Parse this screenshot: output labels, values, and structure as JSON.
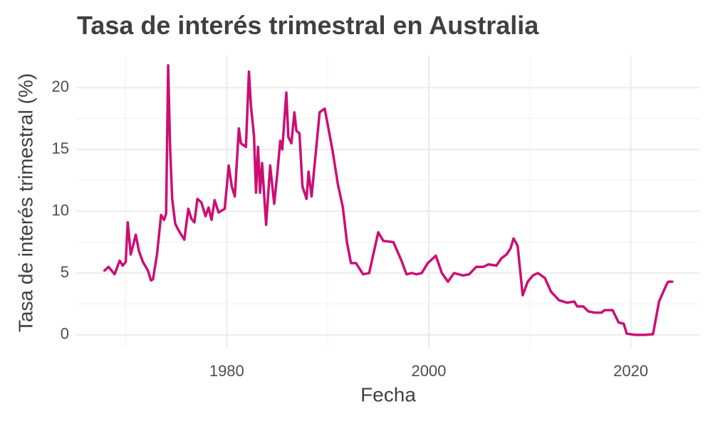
{
  "chart_data": {
    "type": "line",
    "title": "Tasa de interés trimestral en Australia",
    "x_label": "Fecha",
    "y_label": "Tasa de interés trimestral (%)",
    "color": "#cc0e74",
    "grid": true,
    "x": [
      1967.9,
      1968.3,
      1968.9,
      1969.4,
      1969.7,
      1970.0,
      1970.2,
      1970.5,
      1971.0,
      1971.3,
      1971.7,
      1972.2,
      1972.5,
      1972.7,
      1973.1,
      1973.5,
      1973.8,
      1974.0,
      1974.2,
      1974.4,
      1974.6,
      1974.9,
      1975.2,
      1975.8,
      1976.2,
      1976.5,
      1976.8,
      1977.1,
      1977.5,
      1977.9,
      1978.2,
      1978.5,
      1978.8,
      1979.2,
      1979.8,
      1980.2,
      1980.5,
      1980.8,
      1981.2,
      1981.4,
      1981.9,
      1982.2,
      1982.4,
      1982.7,
      1982.9,
      1983.1,
      1983.3,
      1983.5,
      1983.9,
      1984.2,
      1984.3,
      1984.7,
      1985.0,
      1985.3,
      1985.5,
      1985.9,
      1986.1,
      1986.4,
      1986.7,
      1986.9,
      1987.2,
      1987.5,
      1987.9,
      1988.1,
      1988.4,
      1989.2,
      1989.7,
      1990.0,
      1990.5,
      1991.0,
      1991.5,
      1991.9,
      1992.3,
      1992.8,
      1993.5,
      1994.1,
      1995.0,
      1995.5,
      1996.5,
      1997.3,
      1997.8,
      1998.3,
      1998.8,
      1999.3,
      1999.9,
      2000.7,
      2001.3,
      2001.9,
      2002.5,
      2003.4,
      2004.0,
      2004.7,
      2005.4,
      2005.9,
      2006.7,
      2007.2,
      2007.7,
      2008.1,
      2008.4,
      2008.8,
      2009.3,
      2009.8,
      2010.3,
      2010.8,
      2011.5,
      2012.1,
      2012.9,
      2013.7,
      2014.4,
      2014.7,
      2015.3,
      2015.8,
      2016.4,
      2017.1,
      2017.4,
      2018.2,
      2018.8,
      2019.3,
      2019.6,
      2020.4,
      2021.4,
      2022.2,
      2022.8,
      2023.5,
      2023.7,
      2024.1
    ],
    "values": [
      5.2,
      5.5,
      4.9,
      6.0,
      5.6,
      5.9,
      9.1,
      6.5,
      8.1,
      6.8,
      5.9,
      5.2,
      4.4,
      4.5,
      6.5,
      9.7,
      9.3,
      9.8,
      21.8,
      15.0,
      11.0,
      9.0,
      8.5,
      7.7,
      10.2,
      9.4,
      9.1,
      11.0,
      10.7,
      9.6,
      10.3,
      9.3,
      10.9,
      9.9,
      10.2,
      13.7,
      12.0,
      11.2,
      16.7,
      15.5,
      15.2,
      21.3,
      18.5,
      16.1,
      11.5,
      15.2,
      11.5,
      13.9,
      8.9,
      12.5,
      13.7,
      10.6,
      13.0,
      15.7,
      15.0,
      19.6,
      16.0,
      15.5,
      18.0,
      16.5,
      16.3,
      12.0,
      11.0,
      13.2,
      11.2,
      18.0,
      18.3,
      17.0,
      14.8,
      12.2,
      10.3,
      7.5,
      5.8,
      5.8,
      4.9,
      5.0,
      8.3,
      7.6,
      7.5,
      6.0,
      4.9,
      5.0,
      4.9,
      5.0,
      5.8,
      6.4,
      5.0,
      4.3,
      5.0,
      4.8,
      4.9,
      5.5,
      5.5,
      5.7,
      5.6,
      6.2,
      6.5,
      7.0,
      7.8,
      7.2,
      3.2,
      4.3,
      4.8,
      5.0,
      4.6,
      3.5,
      2.8,
      2.6,
      2.7,
      2.3,
      2.3,
      1.9,
      1.8,
      1.8,
      2.0,
      2.0,
      1.0,
      0.9,
      0.1,
      0.0,
      0.0,
      0.05,
      2.7,
      4.0,
      4.3,
      4.3
    ],
    "xlim": [
      1965.1,
      2026.8
    ],
    "ylim": [
      -1.1,
      22.6
    ],
    "xticks": [
      1980,
      2000,
      2020
    ],
    "yticks": [
      0,
      5,
      10,
      15,
      20
    ],
    "x_minor_grid": [
      1970,
      1990,
      2010
    ],
    "y_minor_grid": [
      2.5,
      7.5,
      12.5,
      17.5
    ]
  }
}
